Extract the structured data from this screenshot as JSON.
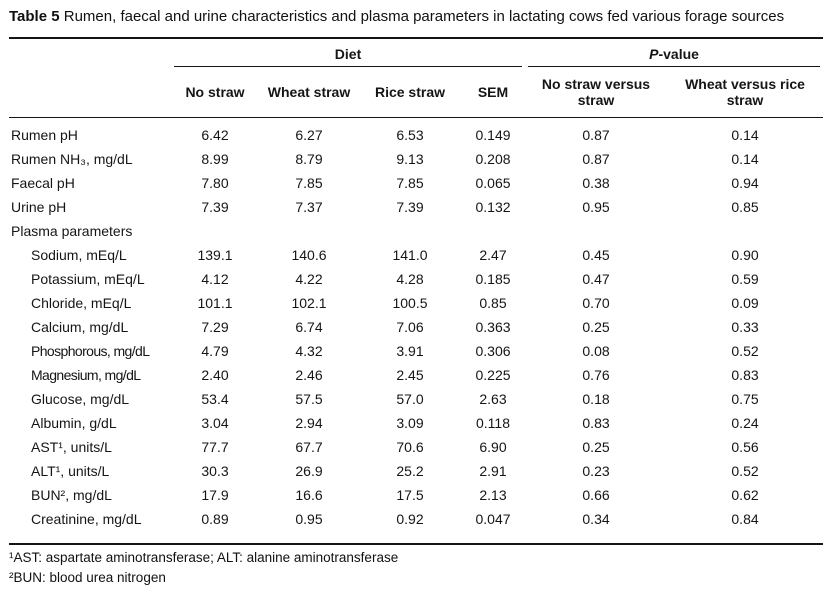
{
  "caption": {
    "label": "Table 5",
    "text": "Rumen, faecal and urine characteristics and plasma parameters in lactating cows fed various forage sources"
  },
  "header": {
    "group_diet": "Diet",
    "group_pvalue_italic": "P",
    "group_pvalue_rest": "-value",
    "columns": [
      "No straw",
      "Wheat straw",
      "Rice straw",
      "SEM",
      "No straw versus straw",
      "Wheat versus rice straw"
    ]
  },
  "table": {
    "rows": [
      {
        "label": "Rumen pH",
        "indent": false,
        "section": false,
        "values": [
          "6.42",
          "6.27",
          "6.53",
          "0.149",
          "0.87",
          "0.14"
        ]
      },
      {
        "label": "Rumen NH₃, mg/dL",
        "indent": false,
        "section": false,
        "values": [
          "8.99",
          "8.79",
          "9.13",
          "0.208",
          "0.87",
          "0.14"
        ]
      },
      {
        "label": "Faecal pH",
        "indent": false,
        "section": false,
        "values": [
          "7.80",
          "7.85",
          "7.85",
          "0.065",
          "0.38",
          "0.94"
        ]
      },
      {
        "label": "Urine pH",
        "indent": false,
        "section": false,
        "values": [
          "7.39",
          "7.37",
          "7.39",
          "0.132",
          "0.95",
          "0.85"
        ]
      },
      {
        "label": "Plasma parameters",
        "indent": false,
        "section": true,
        "values": [
          "",
          "",
          "",
          "",
          "",
          ""
        ]
      },
      {
        "label": "Sodium, mEq/L",
        "indent": true,
        "section": false,
        "values": [
          "139.1",
          "140.6",
          "141.0",
          "2.47",
          "0.45",
          "0.90"
        ]
      },
      {
        "label": "Potassium, mEq/L",
        "indent": true,
        "section": false,
        "values": [
          "4.12",
          "4.22",
          "4.28",
          "0.185",
          "0.47",
          "0.59"
        ]
      },
      {
        "label": "Chloride, mEq/L",
        "indent": true,
        "section": false,
        "values": [
          "101.1",
          "102.1",
          "100.5",
          "0.85",
          "0.70",
          "0.09"
        ]
      },
      {
        "label": "Calcium, mg/dL",
        "indent": true,
        "section": false,
        "values": [
          "7.29",
          "6.74",
          "7.06",
          "0.363",
          "0.25",
          "0.33"
        ]
      },
      {
        "label": "Phosphorous, mg/dL",
        "indent": true,
        "section": false,
        "condensed": true,
        "values": [
          "4.79",
          "4.32",
          "3.91",
          "0.306",
          "0.08",
          "0.52"
        ]
      },
      {
        "label": "Magnesium, mg/dL",
        "indent": true,
        "section": false,
        "condensed": true,
        "values": [
          "2.40",
          "2.46",
          "2.45",
          "0.225",
          "0.76",
          "0.83"
        ]
      },
      {
        "label": "Glucose, mg/dL",
        "indent": true,
        "section": false,
        "values": [
          "53.4",
          "57.5",
          "57.0",
          "2.63",
          "0.18",
          "0.75"
        ]
      },
      {
        "label": "Albumin, g/dL",
        "indent": true,
        "section": false,
        "values": [
          "3.04",
          "2.94",
          "3.09",
          "0.118",
          "0.83",
          "0.24"
        ]
      },
      {
        "label": "AST¹, units/L",
        "indent": true,
        "section": false,
        "values": [
          "77.7",
          "67.7",
          "70.6",
          "6.90",
          "0.25",
          "0.56"
        ]
      },
      {
        "label": "ALT¹, units/L",
        "indent": true,
        "section": false,
        "values": [
          "30.3",
          "26.9",
          "25.2",
          "2.91",
          "0.23",
          "0.52"
        ]
      },
      {
        "label": "BUN², mg/dL",
        "indent": true,
        "section": false,
        "values": [
          "17.9",
          "16.6",
          "17.5",
          "2.13",
          "0.66",
          "0.62"
        ]
      },
      {
        "label": "Creatinine, mg/dL",
        "indent": true,
        "section": false,
        "values": [
          "0.89",
          "0.95",
          "0.92",
          "0.047",
          "0.34",
          "0.84"
        ]
      }
    ]
  },
  "footnotes": [
    "¹AST: aspartate aminotransferase; ALT: alanine aminotransferase",
    "²BUN: blood urea nitrogen"
  ],
  "colors": {
    "text": "#151515",
    "rule": "#151515",
    "background": "#ffffff"
  }
}
